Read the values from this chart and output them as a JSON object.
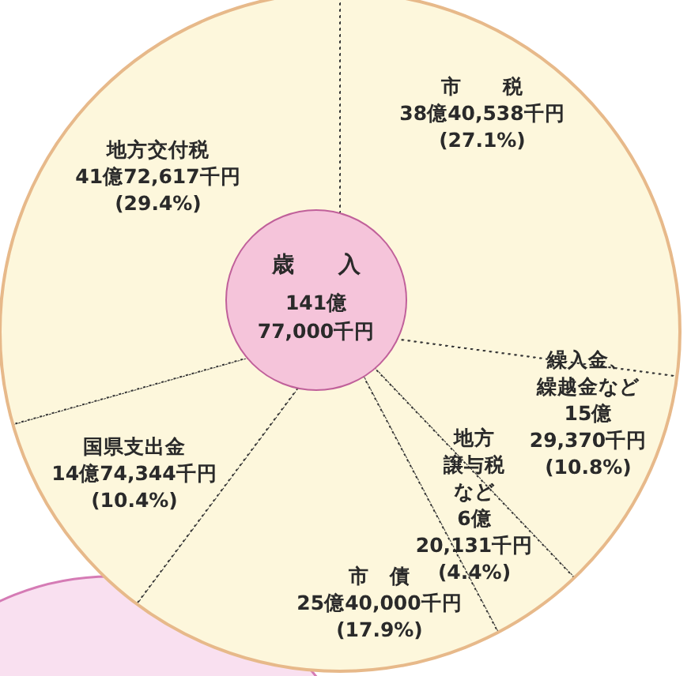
{
  "chart_data": {
    "type": "pie",
    "title": "歳　　入",
    "annotations": [
      "141億\n77,000千円"
    ],
    "categories": [
      "市　　税",
      "繰入金、繰越金など",
      "地方譲与税など",
      "市　債",
      "国県支出金",
      "地方交付税"
    ],
    "values": [
      27.1,
      10.8,
      4.4,
      17.9,
      10.4,
      29.4
    ],
    "value_labels": [
      "38億40,538千円\n(27.1%)",
      "15億\n29,370千円\n(10.8%)",
      "6億\n20,131千円\n(4.4%)",
      "25億40,000千円\n(17.9%)",
      "14億74,344千円\n(10.4%)",
      "41億72,617千円\n(29.4%)"
    ],
    "colors": [
      "#fdf7dc",
      "#fdf7dc",
      "#fdf7dc",
      "#fdf7dc",
      "#fdf7dc",
      "#fdf7dc"
    ]
  }
}
